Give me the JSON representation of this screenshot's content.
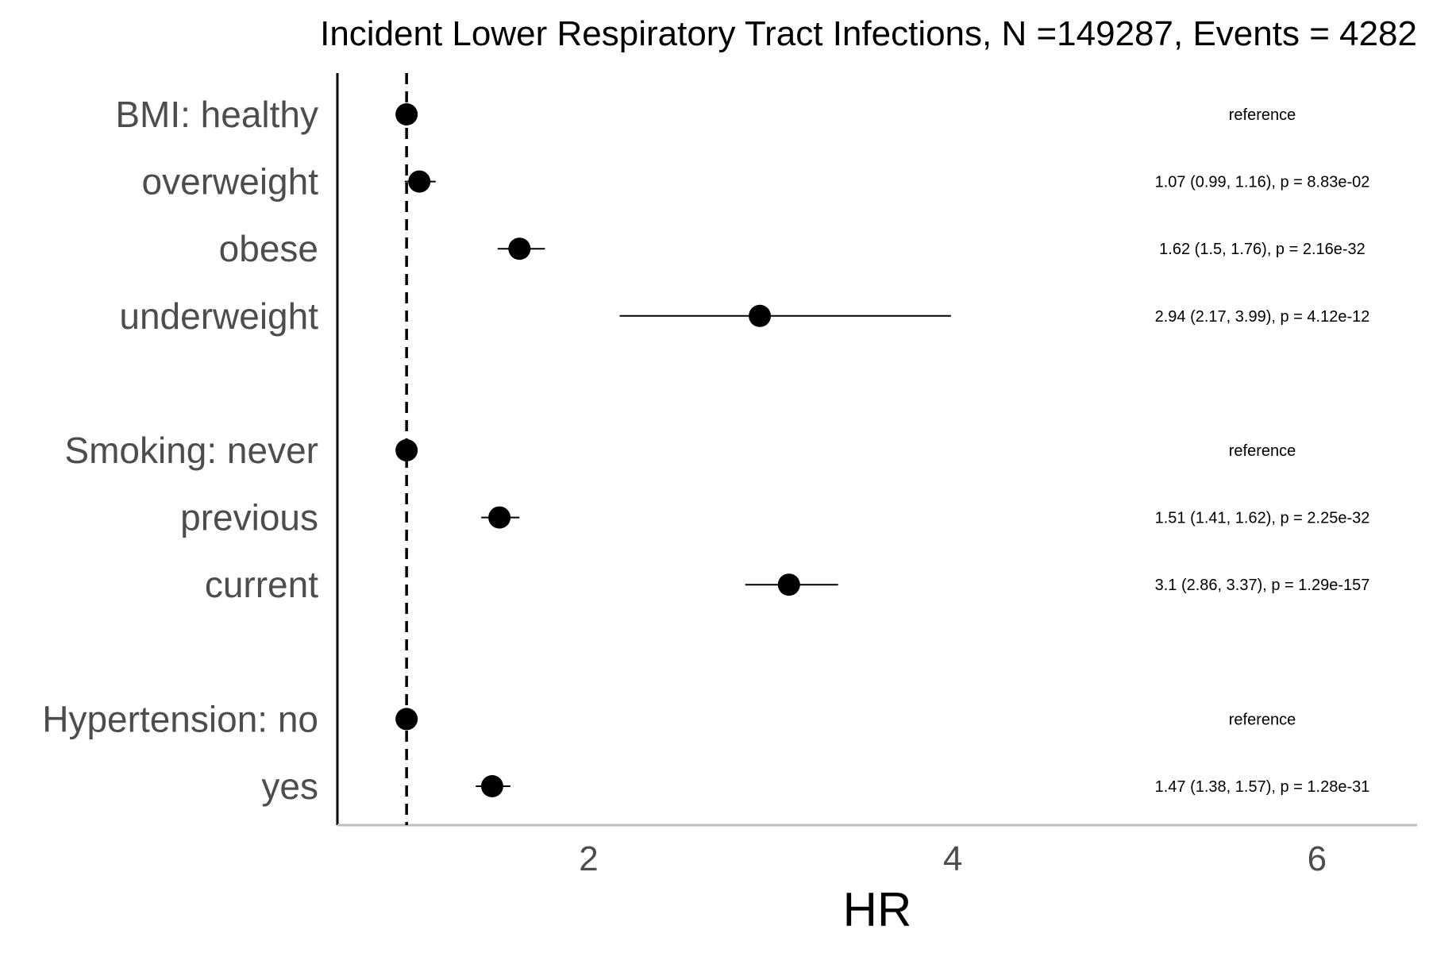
{
  "chart_data": {
    "type": "scatter",
    "subtype": "forest-plot",
    "title": "Incident Lower Respiratory Tract Infections, N =149287, Events = 4282",
    "xlabel": "HR",
    "ylabel": "",
    "xlim": [
      0.62,
      6.55
    ],
    "xticks": [
      2,
      4,
      6
    ],
    "reference_line": 1,
    "grid": false,
    "groups": [
      "BMI",
      "Smoking",
      "Hypertension"
    ],
    "rows": [
      {
        "label": "BMI: healthy",
        "group": "BMI",
        "hr": 1.0,
        "lower": null,
        "upper": null,
        "annotation": "reference"
      },
      {
        "label": "overweight",
        "group": "BMI",
        "hr": 1.07,
        "lower": 0.99,
        "upper": 1.16,
        "annotation": "1.07 (0.99, 1.16), p = 8.83e-02"
      },
      {
        "label": "obese",
        "group": "BMI",
        "hr": 1.62,
        "lower": 1.5,
        "upper": 1.76,
        "annotation": "1.62 (1.5, 1.76), p = 2.16e-32"
      },
      {
        "label": "underweight",
        "group": "BMI",
        "hr": 2.94,
        "lower": 2.17,
        "upper": 3.99,
        "annotation": "2.94 (2.17, 3.99), p = 4.12e-12"
      },
      {
        "label": "Smoking: never",
        "group": "Smoking",
        "hr": 1.0,
        "lower": null,
        "upper": null,
        "annotation": "reference"
      },
      {
        "label": "previous",
        "group": "Smoking",
        "hr": 1.51,
        "lower": 1.41,
        "upper": 1.62,
        "annotation": "1.51 (1.41, 1.62), p = 2.25e-32"
      },
      {
        "label": "current",
        "group": "Smoking",
        "hr": 3.1,
        "lower": 2.86,
        "upper": 3.37,
        "annotation": "3.1 (2.86, 3.37), p = 1.29e-157"
      },
      {
        "label": "Hypertension: no",
        "group": "Hypertension",
        "hr": 1.0,
        "lower": null,
        "upper": null,
        "annotation": "reference"
      },
      {
        "label": "yes",
        "group": "Hypertension",
        "hr": 1.47,
        "lower": 1.38,
        "upper": 1.57,
        "annotation": "1.47 (1.38, 1.57), p = 1.28e-31"
      }
    ]
  },
  "colors": {
    "point": "#000000",
    "y_label_text": "#4d4d4d",
    "x_axis_line": "#bebebe",
    "y_axis_line": "#000000"
  }
}
